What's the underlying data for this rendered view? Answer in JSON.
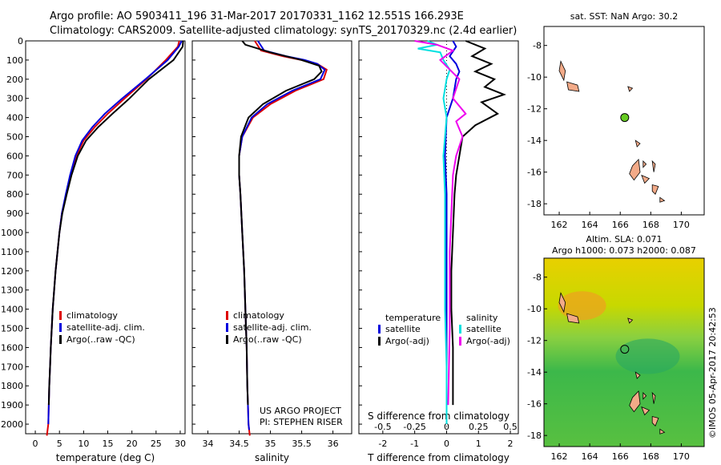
{
  "header": {
    "line1": "Argo profile: AO 5903411_196 31-Mar-2017 20170331_1162 12.551S 166.293E",
    "line2": "Climatology: CARS2009. Satellite-adjusted climatology: synTS_20170329.nc (2.4d earlier)"
  },
  "side_label": "©IMOS 05-Apr-2017 20:42:53",
  "chart_data": [
    {
      "id": "temperature",
      "type": "line",
      "xlabel": "temperature (deg C)",
      "ylabel": "",
      "xlim": [
        -2,
        31
      ],
      "ylim": [
        2050,
        0
      ],
      "xticks": [
        0,
        5,
        10,
        15,
        20,
        25,
        30
      ],
      "yticks": [
        0,
        100,
        200,
        300,
        400,
        500,
        600,
        700,
        800,
        900,
        1000,
        1100,
        1200,
        1300,
        1400,
        1500,
        1600,
        1700,
        1800,
        1900,
        2000
      ],
      "legend": [
        "climatology",
        "satellite-adj. clim.",
        "Argo(..raw -QC)"
      ],
      "legend_position": "lower-left",
      "series": [
        {
          "name": "climatology",
          "color": "#dd0000",
          "x": [
            29.8,
            29.5,
            27.0,
            23.0,
            18.5,
            15.0,
            12.3,
            10.0,
            8.5,
            7.3,
            6.4,
            5.5,
            5.0,
            4.6,
            4.2,
            3.9,
            3.6,
            3.4,
            3.2,
            3.05,
            2.9,
            2.8,
            2.7,
            2.6,
            2.5,
            2.45,
            2.4
          ],
          "y": [
            0,
            30,
            100,
            200,
            300,
            380,
            450,
            520,
            600,
            700,
            800,
            900,
            1000,
            1100,
            1200,
            1300,
            1400,
            1500,
            1600,
            1700,
            1800,
            1900,
            2000,
            2020,
            2040,
            2050,
            2060
          ]
        },
        {
          "name": "satellite-adj. clim.",
          "color": "#0000dd",
          "x": [
            30.3,
            29.7,
            27.4,
            22.8,
            18.0,
            14.4,
            11.8,
            9.7,
            8.3,
            7.2,
            6.3,
            5.5,
            5.0,
            4.6,
            4.2,
            3.9,
            3.6,
            3.4,
            3.2,
            3.05,
            2.9,
            2.8,
            2.7
          ],
          "y": [
            0,
            30,
            100,
            200,
            300,
            380,
            450,
            520,
            600,
            700,
            800,
            900,
            1000,
            1100,
            1200,
            1300,
            1400,
            1500,
            1600,
            1700,
            1800,
            1900,
            2000
          ]
        },
        {
          "name": "Argo(..raw -QC)",
          "color": "#000000",
          "x": [
            30.6,
            30.5,
            28.6,
            23.5,
            19.5,
            16.0,
            13.0,
            10.5,
            8.8,
            7.5,
            6.5,
            5.6,
            5.0,
            4.6,
            4.2,
            3.9,
            3.6,
            3.4,
            3.2,
            3.05,
            2.9,
            2.8
          ],
          "y": [
            0,
            30,
            100,
            200,
            300,
            380,
            450,
            520,
            600,
            700,
            800,
            900,
            1000,
            1100,
            1200,
            1300,
            1400,
            1500,
            1600,
            1700,
            1800,
            1900
          ]
        }
      ]
    },
    {
      "id": "salinity",
      "type": "line",
      "xlabel": "salinity",
      "ylabel": "",
      "xlim": [
        33.75,
        36.3
      ],
      "ylim": [
        2050,
        0
      ],
      "xticks": [
        34,
        34.5,
        35,
        35.5,
        36
      ],
      "legend": [
        "climatology",
        "satellite-adj. clim.",
        "Argo(..raw -QC)"
      ],
      "legend_position": "lower-left",
      "annotation": [
        "US ARGO PROJECT",
        "PI: STEPHEN RISER"
      ],
      "series": [
        {
          "name": "climatology",
          "color": "#dd0000",
          "x": [
            34.75,
            34.85,
            35.2,
            35.5,
            35.75,
            35.9,
            35.85,
            35.4,
            35.0,
            34.72,
            34.55,
            34.5,
            34.5,
            34.52,
            34.55,
            34.58,
            34.6,
            34.62,
            34.63,
            34.64,
            34.65,
            34.66,
            34.67
          ],
          "y": [
            0,
            50,
            80,
            100,
            120,
            150,
            200,
            260,
            330,
            400,
            500,
            600,
            700,
            800,
            1000,
            1200,
            1400,
            1600,
            1800,
            1900,
            2000,
            2030,
            2060
          ]
        },
        {
          "name": "satellite-adj. clim.",
          "color": "#0000dd",
          "x": [
            34.8,
            34.9,
            35.25,
            35.55,
            35.75,
            35.87,
            35.8,
            35.35,
            34.95,
            34.7,
            34.55,
            34.5,
            34.5,
            34.52,
            34.55,
            34.58,
            34.6,
            34.62,
            34.63,
            34.64,
            34.65,
            34.66
          ],
          "y": [
            0,
            50,
            80,
            100,
            120,
            150,
            200,
            260,
            330,
            400,
            500,
            600,
            700,
            800,
            1000,
            1200,
            1400,
            1600,
            1800,
            1900,
            2000,
            2030
          ]
        },
        {
          "name": "Argo(..raw -QC)",
          "color": "#000000",
          "x": [
            34.55,
            34.6,
            35.0,
            35.5,
            35.78,
            35.82,
            35.7,
            35.25,
            34.88,
            34.65,
            34.53,
            34.5,
            34.5,
            34.52,
            34.55,
            34.58,
            34.6,
            34.62,
            34.63,
            34.64
          ],
          "y": [
            0,
            20,
            60,
            100,
            130,
            160,
            200,
            260,
            330,
            400,
            500,
            600,
            700,
            800,
            1000,
            1200,
            1400,
            1600,
            1800,
            1900
          ]
        }
      ]
    },
    {
      "id": "difference",
      "type": "line",
      "xlabel": "T difference from climatology",
      "xlabel2": "S difference from climatology",
      "xlim": [
        -2.75,
        2.25
      ],
      "ylim": [
        2050,
        0
      ],
      "xticks": [
        -2,
        -1,
        0,
        1,
        2
      ],
      "xticks2": [
        -0.5,
        -0.25,
        0,
        0.25,
        0.5
      ],
      "legend_temperature_title": "temperature",
      "legend_salinity_title": "salinity",
      "legend_temperature": [
        "satellite",
        "Argo(-adj)"
      ],
      "legend_salinity": [
        "satellite",
        "Argo(-adj)"
      ],
      "series": [
        {
          "name": "satellite",
          "color": "#0000dd",
          "x": [
            0.2,
            0.3,
            0.1,
            0.3,
            0.4,
            0.3,
            0.2,
            0.0,
            -0.05,
            0.0,
            0.0,
            0.0,
            0.0,
            0.0,
            0.0,
            0.0
          ],
          "y": [
            0,
            30,
            80,
            120,
            160,
            200,
            300,
            400,
            600,
            800,
            1000,
            1200,
            1400,
            1600,
            1800,
            2000
          ]
        },
        {
          "name": "Argo(-adj)",
          "color": "#000000",
          "x": [
            0.6,
            1.2,
            0.8,
            1.4,
            0.9,
            1.5,
            1.2,
            1.8,
            1.1,
            1.6,
            0.9,
            0.5,
            0.4,
            0.3,
            0.25,
            0.2,
            0.15,
            0.15,
            0.2,
            0.2
          ],
          "y": [
            0,
            40,
            80,
            120,
            160,
            200,
            240,
            280,
            320,
            380,
            440,
            500,
            600,
            700,
            800,
            1000,
            1200,
            1400,
            1600,
            1900
          ]
        },
        {
          "name": "satellite",
          "color": "#00e0e0",
          "x": [
            -0.6,
            -0.3,
            -0.9,
            -0.2,
            -0.1,
            0.1,
            0.0,
            -0.1,
            0.0,
            -0.1,
            -0.05,
            -0.05,
            -0.05,
            -0.05,
            0.0,
            0.0
          ],
          "y": [
            0,
            20,
            40,
            60,
            100,
            150,
            200,
            300,
            400,
            600,
            800,
            1000,
            1200,
            1400,
            1700,
            2000
          ]
        },
        {
          "name": "Argo(-adj)",
          "color": "#ee00ee",
          "x": [
            -1.0,
            -0.3,
            0.2,
            -0.2,
            0.4,
            0.2,
            0.6,
            0.3,
            0.5,
            0.3,
            0.2,
            0.15,
            0.1,
            0.1,
            0.1,
            0.05
          ],
          "y": [
            0,
            20,
            50,
            100,
            200,
            300,
            380,
            420,
            500,
            600,
            700,
            900,
            1100,
            1300,
            1500,
            1900
          ]
        }
      ]
    }
  ],
  "map_top": {
    "title": "sat. SST: NaN Argo: 30.2",
    "xticks": [
      162,
      164,
      166,
      168,
      170
    ],
    "yticks": [
      -8,
      -10,
      -12,
      -14,
      -16,
      -18
    ],
    "lon_range": [
      161,
      171.5
    ],
    "lat_range": [
      -18.7,
      -6.8
    ],
    "marker": {
      "lon": 166.293,
      "lat": -12.551
    }
  },
  "map_bottom": {
    "title_line1": "Altim. SLA: 0.071",
    "title_line2": "Argo h1000: 0.073 h2000: 0.087",
    "xticks": [
      162,
      164,
      166,
      168,
      170
    ],
    "yticks": [
      -8,
      -10,
      -12,
      -14,
      -16,
      -18
    ],
    "lon_range": [
      161,
      171.5
    ],
    "lat_range": [
      -18.7,
      -6.8
    ],
    "marker": {
      "lon": 166.293,
      "lat": -12.551
    }
  }
}
